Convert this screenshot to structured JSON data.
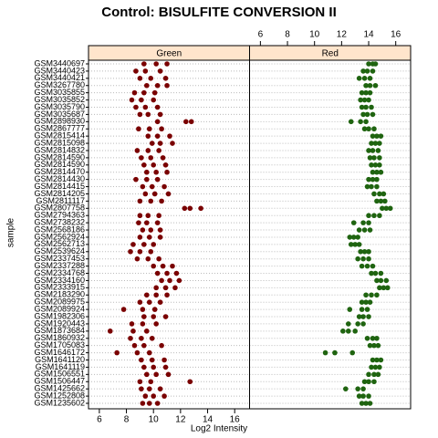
{
  "chart_data": {
    "type": "dotplot",
    "title": "Control: BISULFITE CONVERSION II",
    "x_label": "Log2 Intensity",
    "y_label": "sample",
    "xlim": [
      5.2,
      17.1
    ],
    "xticks": [
      6,
      8,
      10,
      12,
      14,
      16
    ],
    "categories": [
      "GSM3440697",
      "GSM3440423",
      "GSM3440421",
      "GSM3267780",
      "GSM3035855",
      "GSM3035852",
      "GSM3035790",
      "GSM3035687",
      "GSM2898930",
      "GSM2867777",
      "GSM2815414",
      "GSM2815098",
      "GSM2814832",
      "GSM2814590",
      "GSM2814590",
      "GSM2814470",
      "GSM2814430",
      "GSM2814415",
      "GSM2814205",
      "GSM2811117",
      "GSM2807758",
      "GSM2794363",
      "GSM2738232",
      "GSM2568186",
      "GSM2562924",
      "GSM2562713",
      "GSM2539624",
      "GSM2337453",
      "GSM2337288",
      "GSM2334768",
      "GSM2334160",
      "GSM2333915",
      "GSM2183290",
      "GSM2089975",
      "GSM2089924",
      "GSM1982306",
      "GSM1920443",
      "GSM1873684",
      "GSM1860932",
      "GSM1705083",
      "GSM1646172",
      "GSM1641120",
      "GSM1641119",
      "GSM1506551",
      "GSM1506447",
      "GSM1425662",
      "GSM1252808",
      "GSM1235602"
    ],
    "series": [
      {
        "name": "Green",
        "color": "#7a0000",
        "values": [
          [
            9.3,
            10.2,
            11.0
          ],
          [
            8.7,
            9.4,
            10.5
          ],
          [
            9.0,
            9.8,
            10.9
          ],
          [
            9.5,
            10.3,
            11.0
          ],
          [
            8.6,
            9.3,
            10.1
          ],
          [
            8.4,
            9.1,
            10.0
          ],
          [
            8.7,
            9.4,
            10.3
          ],
          [
            9.0,
            9.6,
            10.5
          ],
          [
            10.3,
            12.4,
            12.8
          ],
          [
            8.9,
            9.7,
            10.6
          ],
          [
            9.6,
            10.3,
            11.2
          ],
          [
            9.9,
            10.5,
            11.4
          ],
          [
            8.8,
            9.6,
            10.4
          ],
          [
            9.1,
            9.8,
            10.7
          ],
          [
            9.3,
            10.0,
            10.9
          ],
          [
            9.5,
            10.2,
            11.0
          ],
          [
            8.7,
            9.5,
            10.3
          ],
          [
            9.2,
            9.9,
            10.8
          ],
          [
            9.4,
            10.1,
            11.1
          ],
          [
            9.0,
            9.8,
            10.6
          ],
          [
            12.3,
            12.7,
            13.5
          ],
          [
            9.0,
            9.6,
            10.4
          ],
          [
            8.9,
            9.5,
            10.3
          ],
          [
            9.2,
            9.8,
            10.5
          ],
          [
            9.0,
            9.7,
            10.5
          ],
          [
            8.5,
            9.3,
            10.0
          ],
          [
            8.3,
            9.0,
            9.8
          ],
          [
            8.8,
            9.6,
            10.4
          ],
          [
            10.0,
            10.7,
            11.4
          ],
          [
            10.3,
            11.0,
            11.7
          ],
          [
            10.6,
            11.2,
            11.9
          ],
          [
            10.2,
            10.9,
            11.6
          ],
          [
            9.5,
            10.2,
            11.0
          ],
          [
            9.0,
            9.7,
            10.5
          ],
          [
            7.8,
            9.2,
            10.1
          ],
          [
            9.3,
            10.0,
            10.9
          ],
          [
            8.4,
            9.2,
            10.2
          ],
          [
            6.8,
            8.5,
            9.5
          ],
          [
            8.3,
            9.1,
            9.9
          ],
          [
            8.6,
            9.3,
            10.6
          ],
          [
            7.3,
            8.8,
            9.7
          ],
          [
            9.1,
            9.9,
            10.8
          ],
          [
            9.3,
            10.0,
            10.9
          ],
          [
            9.5,
            10.2,
            11.1
          ],
          [
            9.0,
            9.8,
            12.7
          ],
          [
            9.1,
            9.7,
            10.5
          ],
          [
            9.4,
            10.0,
            10.8
          ],
          [
            9.2,
            9.7,
            10.3
          ]
        ]
      },
      {
        "name": "Red",
        "color": "#1f6410",
        "values": [
          [
            14.0,
            14.3,
            14.5
          ],
          [
            13.6,
            13.9,
            14.3
          ],
          [
            13.3,
            13.7,
            14.1
          ],
          [
            13.8,
            14.1,
            14.5
          ],
          [
            13.5,
            13.8,
            14.1
          ],
          [
            13.4,
            13.7,
            14.0
          ],
          [
            13.5,
            13.8,
            14.2
          ],
          [
            13.6,
            13.9,
            14.3
          ],
          [
            12.7,
            13.4,
            13.8
          ],
          [
            13.7,
            14.0,
            14.4
          ],
          [
            14.3,
            14.6,
            14.9
          ],
          [
            14.2,
            14.5,
            14.8
          ],
          [
            14.0,
            14.3,
            14.7
          ],
          [
            14.1,
            14.4,
            14.8
          ],
          [
            14.2,
            14.5,
            14.8
          ],
          [
            14.3,
            14.6,
            14.9
          ],
          [
            14.0,
            14.3,
            14.6
          ],
          [
            13.9,
            14.2,
            14.6
          ],
          [
            14.4,
            14.8,
            15.1
          ],
          [
            14.6,
            14.9,
            15.2
          ],
          [
            15.0,
            15.3,
            15.6
          ],
          [
            14.0,
            14.4,
            14.8
          ],
          [
            12.9,
            13.6,
            14.0
          ],
          [
            13.3,
            13.7,
            14.1
          ],
          [
            12.6,
            12.9,
            13.2
          ],
          [
            12.7,
            13.0,
            13.3
          ],
          [
            13.4,
            13.7,
            14.0
          ],
          [
            13.2,
            13.6,
            14.0
          ],
          [
            13.5,
            13.9,
            14.3
          ],
          [
            14.2,
            14.5,
            14.9
          ],
          [
            14.6,
            14.9,
            15.3
          ],
          [
            14.8,
            15.1,
            15.4
          ],
          [
            13.8,
            14.2,
            14.6
          ],
          [
            13.5,
            13.8,
            14.1
          ],
          [
            12.6,
            13.5,
            13.9
          ],
          [
            13.3,
            13.6,
            14.0
          ],
          [
            12.5,
            13.2,
            13.6
          ],
          [
            12.1,
            12.5,
            13.0
          ],
          [
            13.9,
            14.3,
            14.6
          ],
          [
            14.1,
            14.4,
            14.7
          ],
          [
            10.8,
            11.5,
            12.8
          ],
          [
            14.3,
            14.6,
            14.9
          ],
          [
            14.2,
            14.5,
            14.8
          ],
          [
            14.0,
            14.4,
            14.7
          ],
          [
            13.7,
            14.0,
            14.4
          ],
          [
            12.3,
            13.2,
            13.6
          ],
          [
            13.3,
            13.6,
            14.0
          ],
          [
            13.5,
            13.8,
            14.1
          ]
        ]
      }
    ]
  }
}
